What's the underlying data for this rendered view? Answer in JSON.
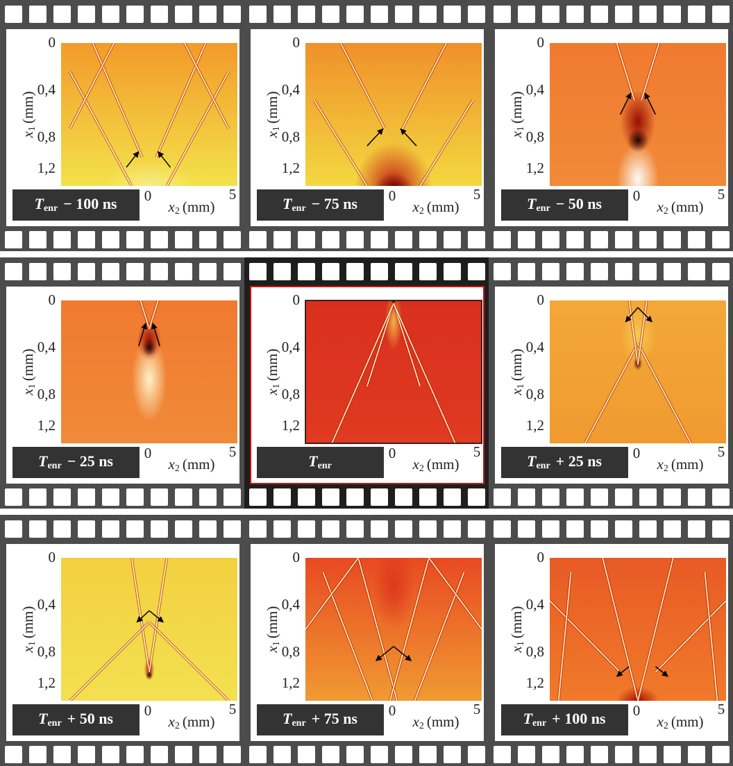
{
  "axes": {
    "y_label": {
      "var": "x",
      "sub": "1",
      "unit": "(mm)"
    },
    "y_ticks": [
      "0",
      "0,4",
      "0,8",
      "1,2"
    ],
    "x_label": {
      "var": "x",
      "sub": "2",
      "unit": "(mm)"
    },
    "x_ticks": [
      "0",
      "5"
    ]
  },
  "panels": [
    {
      "symbol": "T",
      "sub": "enr",
      "offset": "− 100 ns"
    },
    {
      "symbol": "T",
      "sub": "enr",
      "offset": "− 75 ns"
    },
    {
      "symbol": "T",
      "sub": "enr",
      "offset": "− 50 ns"
    },
    {
      "symbol": "T",
      "sub": "enr",
      "offset": "− 25 ns"
    },
    {
      "symbol": "T",
      "sub": "enr"
    },
    {
      "symbol": "T",
      "sub": "enr",
      "offset": "+ 25 ns"
    },
    {
      "symbol": "T",
      "sub": "enr",
      "offset": "+ 50 ns"
    },
    {
      "symbol": "T",
      "sub": "enr",
      "offset": "+ 75 ns"
    },
    {
      "symbol": "T",
      "sub": "enr",
      "offset": "+ 100 ns"
    }
  ]
}
